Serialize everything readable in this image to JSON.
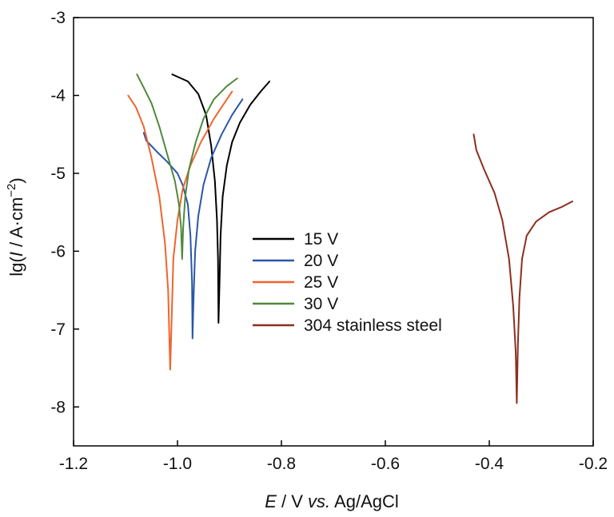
{
  "chart_data": {
    "type": "line",
    "title": "",
    "xlabel": {
      "italic_part": "E",
      "rest": " / V ",
      "italic_part2": "vs.",
      "rest2": " Ag/AgCl"
    },
    "ylabel": {
      "prefix": "lg(",
      "italic_part": "I",
      "middle": " / A·cm",
      "sup": "−2",
      "suffix": ")"
    },
    "xlim": [
      -1.2,
      -0.2
    ],
    "ylim": [
      -8.5,
      -3
    ],
    "xticks": [
      -1.2,
      -1.0,
      -0.8,
      -0.6,
      -0.4,
      -0.2
    ],
    "xtick_labels": [
      "-1.2",
      "-1.0",
      "-0.8",
      "-0.6",
      "-0.4",
      "-0.2"
    ],
    "yticks": [
      -3,
      -4,
      -5,
      -6,
      -7,
      -8
    ],
    "ytick_labels": [
      "-3",
      "-4",
      "-5",
      "-6",
      "-7",
      "-8"
    ],
    "grid": false,
    "legend_position": "center",
    "series": [
      {
        "name": "15 V",
        "color": "#000000",
        "points": [
          [
            -1.01,
            -3.73
          ],
          [
            -0.98,
            -3.82
          ],
          [
            -0.96,
            -3.98
          ],
          [
            -0.945,
            -4.25
          ],
          [
            -0.935,
            -4.65
          ],
          [
            -0.928,
            -5.1
          ],
          [
            -0.924,
            -5.6
          ],
          [
            -0.922,
            -6.1
          ],
          [
            -0.921,
            -6.92
          ],
          [
            -0.919,
            -6.4
          ],
          [
            -0.917,
            -5.8
          ],
          [
            -0.913,
            -5.3
          ],
          [
            -0.905,
            -4.9
          ],
          [
            -0.895,
            -4.6
          ],
          [
            -0.88,
            -4.35
          ],
          [
            -0.86,
            -4.12
          ],
          [
            -0.84,
            -3.95
          ],
          [
            -0.823,
            -3.82
          ]
        ]
      },
      {
        "name": "20 V",
        "color": "#2a56a8",
        "points": [
          [
            -1.065,
            -4.48
          ],
          [
            -1.06,
            -4.58
          ],
          [
            -1.04,
            -4.72
          ],
          [
            -1.02,
            -4.85
          ],
          [
            -1.0,
            -5.0
          ],
          [
            -0.99,
            -5.15
          ],
          [
            -0.98,
            -5.4
          ],
          [
            -0.975,
            -5.8
          ],
          [
            -0.972,
            -6.4
          ],
          [
            -0.971,
            -7.12
          ],
          [
            -0.969,
            -6.6
          ],
          [
            -0.966,
            -6.0
          ],
          [
            -0.96,
            -5.55
          ],
          [
            -0.95,
            -5.15
          ],
          [
            -0.935,
            -4.8
          ],
          [
            -0.915,
            -4.5
          ],
          [
            -0.895,
            -4.25
          ],
          [
            -0.875,
            -4.05
          ]
        ]
      },
      {
        "name": "25 V",
        "color": "#f0642e",
        "points": [
          [
            -1.095,
            -4.0
          ],
          [
            -1.08,
            -4.15
          ],
          [
            -1.065,
            -4.4
          ],
          [
            -1.05,
            -4.8
          ],
          [
            -1.035,
            -5.3
          ],
          [
            -1.024,
            -5.9
          ],
          [
            -1.018,
            -6.5
          ],
          [
            -1.014,
            -7.52
          ],
          [
            -1.011,
            -6.8
          ],
          [
            -1.008,
            -6.1
          ],
          [
            -1.0,
            -5.6
          ],
          [
            -0.99,
            -5.2
          ],
          [
            -0.975,
            -4.9
          ],
          [
            -0.955,
            -4.6
          ],
          [
            -0.93,
            -4.3
          ],
          [
            -0.912,
            -4.12
          ],
          [
            -0.895,
            -3.95
          ]
        ]
      },
      {
        "name": "30 V",
        "color": "#4e8a3c",
        "points": [
          [
            -1.078,
            -3.73
          ],
          [
            -1.065,
            -3.9
          ],
          [
            -1.05,
            -4.1
          ],
          [
            -1.035,
            -4.4
          ],
          [
            -1.02,
            -4.75
          ],
          [
            -1.005,
            -5.1
          ],
          [
            -0.997,
            -5.4
          ],
          [
            -0.993,
            -5.7
          ],
          [
            -0.991,
            -6.1
          ],
          [
            -0.989,
            -5.7
          ],
          [
            -0.985,
            -5.3
          ],
          [
            -0.978,
            -4.95
          ],
          [
            -0.965,
            -4.6
          ],
          [
            -0.95,
            -4.3
          ],
          [
            -0.93,
            -4.05
          ],
          [
            -0.905,
            -3.88
          ],
          [
            -0.885,
            -3.78
          ]
        ]
      },
      {
        "name": "304 stainless steel",
        "color": "#8b2f1f",
        "points": [
          [
            -0.43,
            -4.5
          ],
          [
            -0.425,
            -4.7
          ],
          [
            -0.41,
            -4.95
          ],
          [
            -0.39,
            -5.25
          ],
          [
            -0.375,
            -5.6
          ],
          [
            -0.362,
            -6.1
          ],
          [
            -0.354,
            -6.7
          ],
          [
            -0.349,
            -7.3
          ],
          [
            -0.347,
            -7.95
          ],
          [
            -0.345,
            -7.2
          ],
          [
            -0.342,
            -6.6
          ],
          [
            -0.337,
            -6.1
          ],
          [
            -0.328,
            -5.8
          ],
          [
            -0.31,
            -5.62
          ],
          [
            -0.285,
            -5.5
          ],
          [
            -0.26,
            -5.43
          ],
          [
            -0.24,
            -5.36
          ]
        ]
      }
    ]
  }
}
